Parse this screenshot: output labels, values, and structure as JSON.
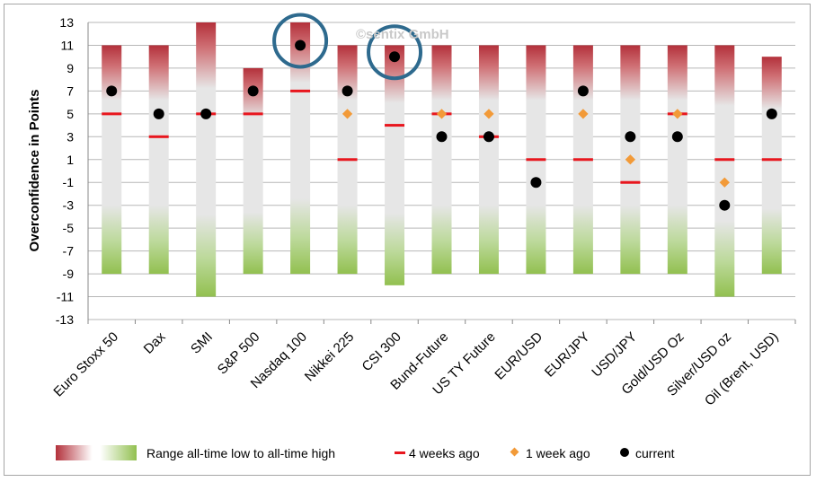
{
  "chart_data": {
    "type": "bar",
    "ylabel": "Overconfidence in Points",
    "ylim": [
      -13,
      13
    ],
    "yticks": [
      13,
      11,
      9,
      7,
      5,
      3,
      1,
      -1,
      -3,
      -5,
      -7,
      -9,
      -11,
      -13
    ],
    "watermark": "©sentix GmbH",
    "categories": [
      "Euro Stoxx 50",
      "Dax",
      "SMI",
      "S&P 500",
      "Nasdaq 100",
      "Nikkei 225",
      "CSI 300",
      "Bund-Future",
      "US TY Future",
      "EUR/USD",
      "EUR/JPY",
      "USD/JPY",
      "Gold/USD Oz",
      "Silver/USD oz",
      "Oil (Brent, USD)"
    ],
    "series": [
      {
        "name": "Range all-time low to all-time high",
        "low": [
          -9,
          -9,
          -11,
          -9,
          -9,
          -9,
          -10,
          -9,
          -9,
          -9,
          -9,
          -9,
          -9,
          -11,
          -9
        ],
        "high": [
          11,
          11,
          13,
          9,
          13,
          11,
          11,
          11,
          11,
          11,
          11,
          11,
          11,
          11,
          10
        ]
      },
      {
        "name": "4 weeks ago",
        "values": [
          5,
          3,
          5,
          5,
          7,
          1,
          4,
          5,
          3,
          1,
          1,
          -1,
          5,
          1,
          1
        ]
      },
      {
        "name": "1 week ago",
        "values": [
          null,
          null,
          null,
          null,
          null,
          5,
          null,
          5,
          5,
          null,
          5,
          1,
          5,
          -1,
          null
        ]
      },
      {
        "name": "current",
        "values": [
          7,
          5,
          5,
          7,
          11,
          7,
          10,
          3,
          3,
          -1,
          7,
          3,
          3,
          -3,
          5
        ]
      }
    ],
    "highlighted": [
      "Nasdaq 100",
      "CSI 300"
    ],
    "colors": {
      "range_high": "#b3313b",
      "range_mid": "#e6e6e6",
      "range_low": "#92c050",
      "four_weeks": "#e8161e",
      "one_week": "#f29a38",
      "current": "#000000",
      "highlight_circle": "#2e6a8e",
      "gridline": "#b7b7b7"
    },
    "legend": {
      "range": "Range all-time low to all-time high",
      "four_weeks": "4 weeks ago",
      "one_week": "1 week ago",
      "current": "current"
    }
  }
}
